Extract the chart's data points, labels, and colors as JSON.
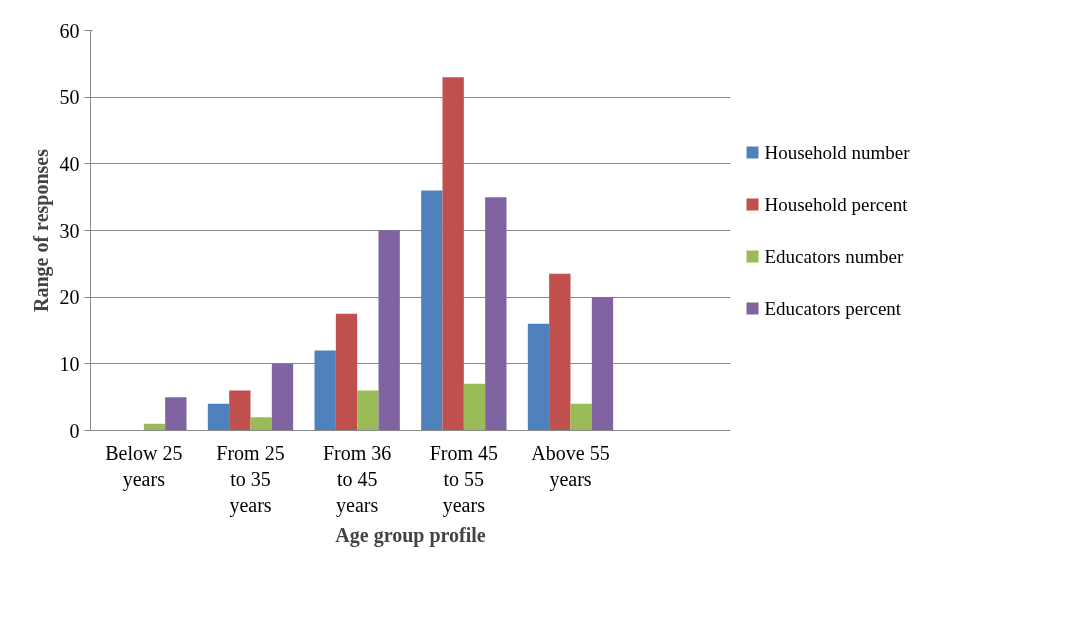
{
  "chart_data": {
    "type": "bar",
    "xlabel": "Age group profile",
    "ylabel": "Range of responses",
    "categories": [
      "Below 25\nyears",
      "From 25\nto 35\nyears",
      "From 36\nto 45\nyears",
      "From 45\nto 55\nyears",
      "Above 55\nyears",
      null
    ],
    "series": [
      {
        "name": "Household number",
        "color": "#4f81bd",
        "values": [
          0,
          4,
          12,
          36,
          16,
          null
        ]
      },
      {
        "name": "Household percent",
        "color": "#c0504d",
        "values": [
          0,
          6,
          17.5,
          53,
          23.5,
          null
        ]
      },
      {
        "name": "Educators number",
        "color": "#9bbb59",
        "values": [
          1,
          2,
          6,
          7,
          4,
          null
        ]
      },
      {
        "name": "Educators percent",
        "color": "#8064a2",
        "values": [
          5,
          10,
          30,
          35,
          20,
          null
        ]
      }
    ],
    "ylim": [
      0,
      60
    ],
    "yticks": [
      0,
      10,
      20,
      30,
      40,
      50,
      60
    ],
    "grid": "y",
    "legend": "right"
  }
}
